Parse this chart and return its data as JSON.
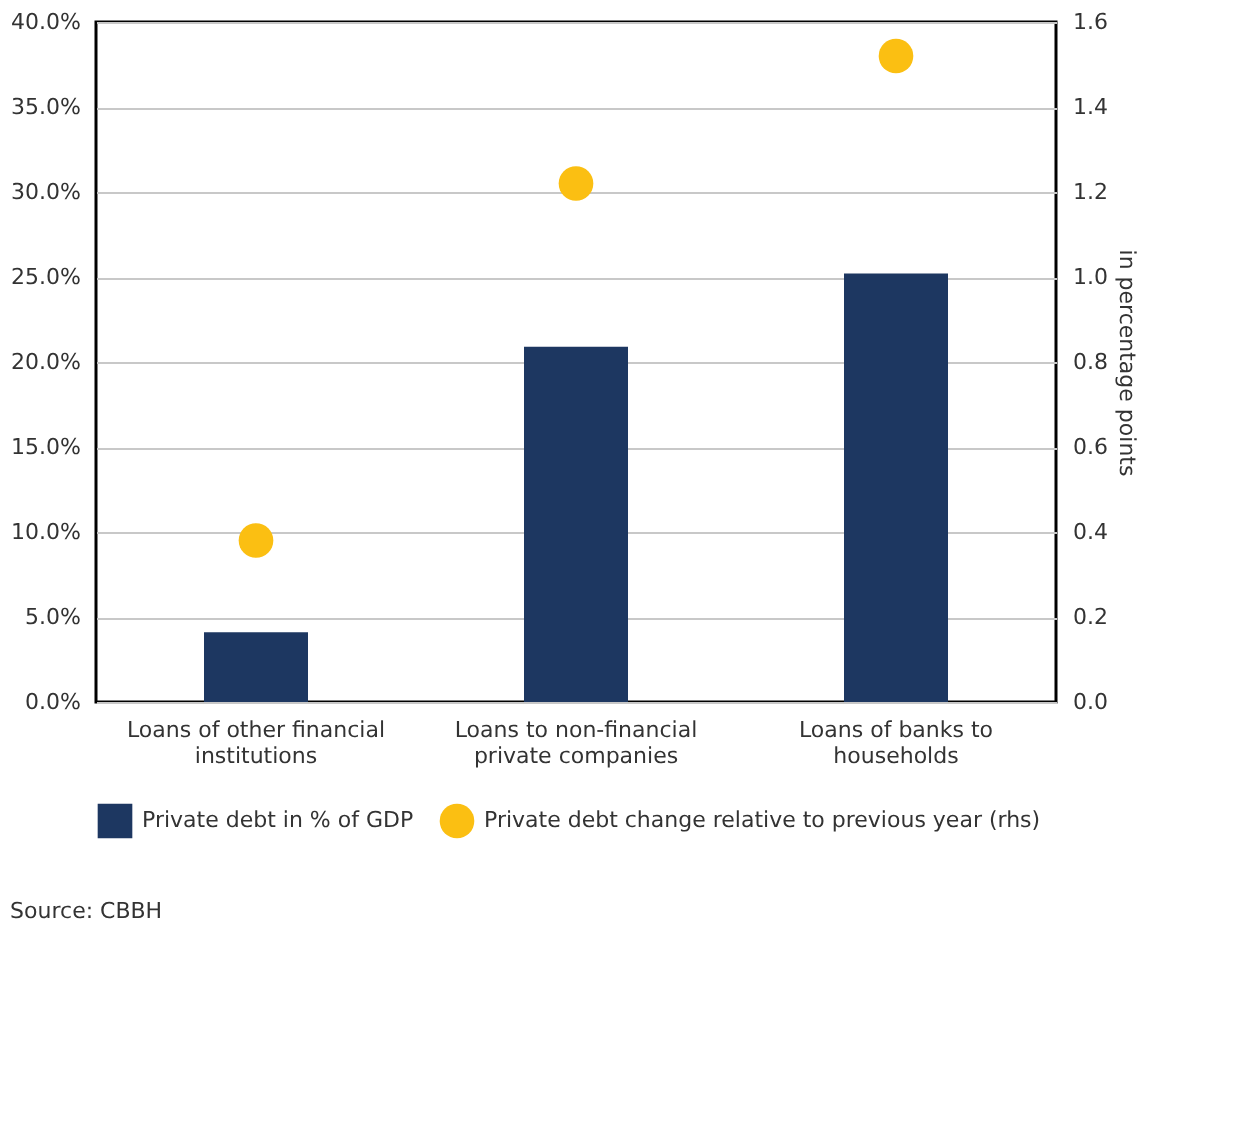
{
  "chart_data": {
    "type": "bar",
    "categories": [
      "Loans of other financial institutions",
      "Loans to non-financial private companies",
      "Loans  of banks to households"
    ],
    "series": [
      {
        "name": "Private debt  in % of GDP",
        "color": "#1d3761",
        "values": [
          4.1,
          20.9,
          25.2
        ]
      },
      {
        "name": "Private debt change relative to previous year  (rhs)",
        "type": "scatter",
        "axis": "y2",
        "color": "#fbbf12",
        "values": [
          0.38,
          1.22,
          1.52
        ]
      }
    ],
    "ylim": [
      0,
      40
    ],
    "yticks": [
      {
        "value": 0,
        "label": "0.0%"
      },
      {
        "value": 5,
        "label": "5.0%"
      },
      {
        "value": 10,
        "label": "10.0%"
      },
      {
        "value": 15,
        "label": "15.0%"
      },
      {
        "value": 20,
        "label": "20.0%"
      },
      {
        "value": 25,
        "label": "25.0%"
      },
      {
        "value": 30,
        "label": "30.0%"
      },
      {
        "value": 35,
        "label": "35.0%"
      },
      {
        "value": 40,
        "label": "40.0%"
      }
    ],
    "y2lim": [
      0,
      1.6
    ],
    "y2ticks": [
      {
        "value": 0,
        "label": "0.0"
      },
      0.2,
      0.4,
      0.6,
      0.8,
      {
        "value": 1,
        "label": "1.0"
      },
      1.2,
      1.4,
      1.6
    ],
    "y2label": "in percentage points",
    "grid": "y",
    "legend": "bottom",
    "marker": "circle",
    "annotations": [
      "Source: CBBH"
    ]
  }
}
